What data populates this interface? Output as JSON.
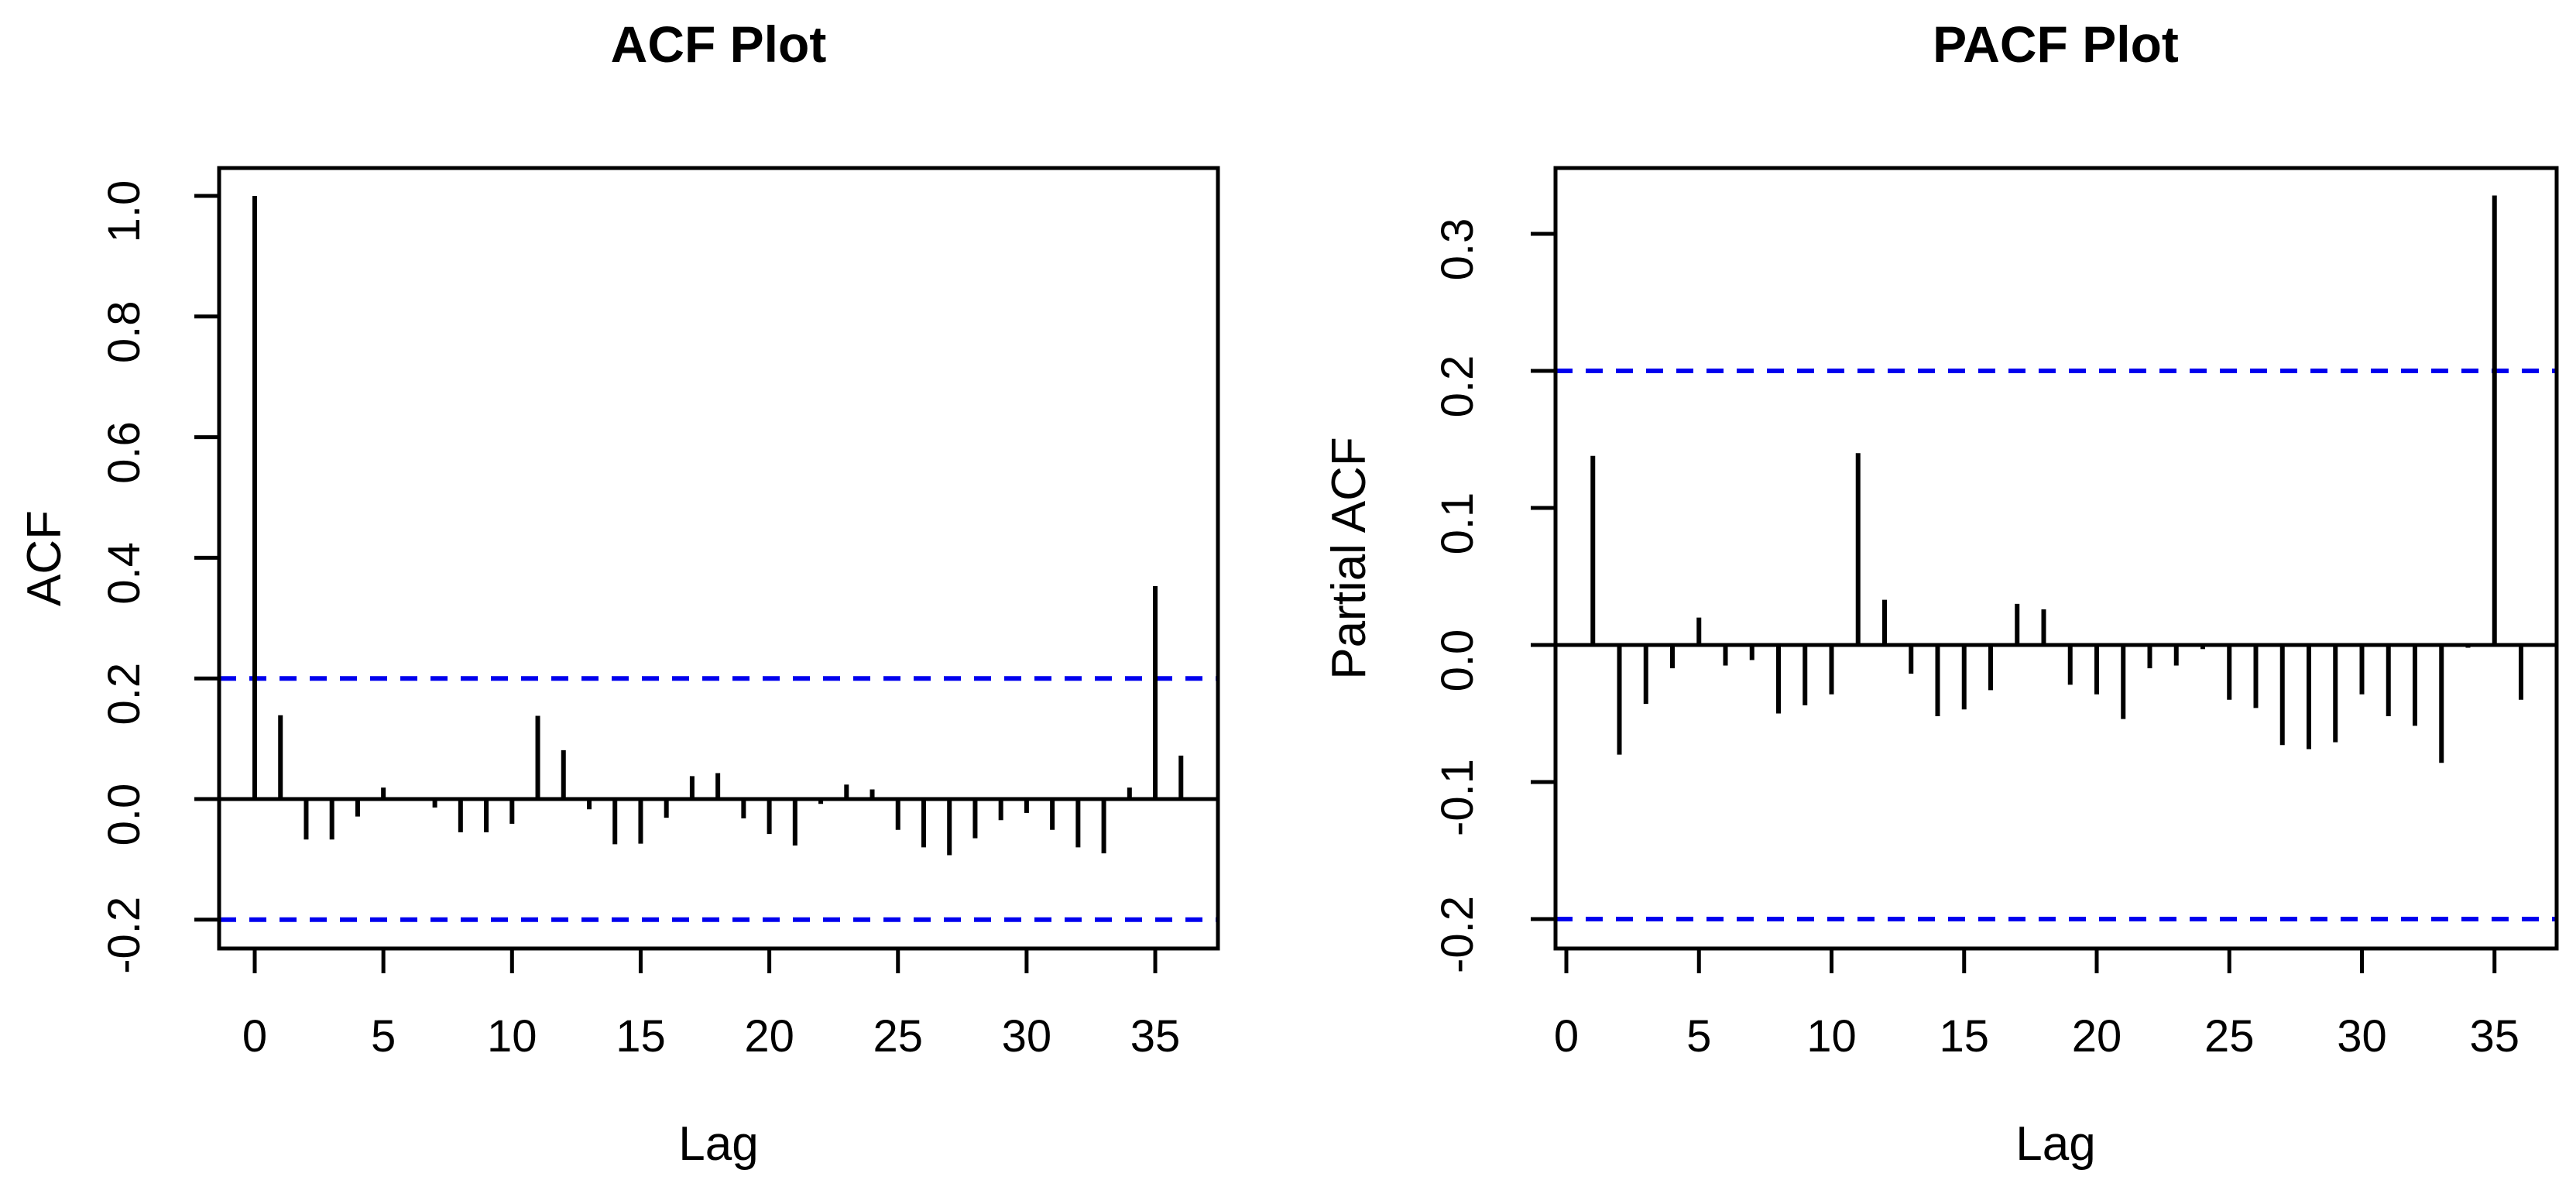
{
  "figure": {
    "background": "#ffffff",
    "line_color": "#000000",
    "ci_color": "#0000ee"
  },
  "chart_data": [
    {
      "type": "bar",
      "title": "ACF Plot",
      "xlabel": "Lag",
      "ylabel": "ACF",
      "x_ticks": [
        0,
        5,
        10,
        15,
        20,
        25,
        30,
        35
      ],
      "x_tick_labels": [
        "0",
        "5",
        "10",
        "15",
        "20",
        "25",
        "30",
        "35"
      ],
      "y_ticks": [
        1.0,
        0.8,
        0.6,
        0.4,
        0.2,
        0.0,
        -0.2
      ],
      "y_tick_labels": [
        "1.0",
        "0.8",
        "0.6",
        "0.4",
        "0.2",
        "0.0",
        "-0.2"
      ],
      "xlim": [
        -1.4,
        37.4
      ],
      "ylim": [
        -0.248,
        1.048
      ],
      "grid": false,
      "conf_bands": [
        0.2,
        -0.2
      ],
      "conf_band_style": "dashed",
      "lags": [
        0,
        1,
        2,
        3,
        4,
        5,
        6,
        7,
        8,
        9,
        10,
        11,
        12,
        13,
        14,
        15,
        16,
        17,
        18,
        19,
        20,
        21,
        22,
        23,
        24,
        25,
        26,
        27,
        28,
        29,
        30,
        31,
        32,
        33,
        34,
        35,
        36
      ],
      "values": [
        1.0,
        0.139,
        -0.067,
        -0.067,
        -0.029,
        0.019,
        0.002,
        -0.014,
        -0.055,
        -0.055,
        -0.041,
        0.138,
        0.081,
        -0.017,
        -0.075,
        -0.074,
        -0.031,
        0.038,
        0.043,
        -0.032,
        -0.058,
        -0.077,
        -0.008,
        0.024,
        0.016,
        -0.051,
        -0.08,
        -0.093,
        -0.065,
        -0.035,
        -0.023,
        -0.051,
        -0.08,
        -0.09,
        0.019,
        0.353,
        0.072
      ]
    },
    {
      "type": "bar",
      "title": "PACF Plot",
      "xlabel": "Lag",
      "ylabel": "Partial ACF",
      "x_ticks": [
        0,
        5,
        10,
        15,
        20,
        25,
        30,
        35
      ],
      "x_tick_labels": [
        "0",
        "5",
        "10",
        "15",
        "20",
        "25",
        "30",
        "35"
      ],
      "y_ticks": [
        0.3,
        0.2,
        0.1,
        0.0,
        -0.1,
        -0.2
      ],
      "y_tick_labels": [
        "0.3",
        "0.2",
        "0.1",
        "0.0",
        "-0.1",
        "-0.2"
      ],
      "xlim": [
        -0.4,
        37.4
      ],
      "ylim": [
        -0.221,
        0.348
      ],
      "grid": false,
      "conf_bands": [
        0.2,
        -0.2
      ],
      "conf_band_style": "dashed",
      "lags": [
        1,
        2,
        3,
        4,
        5,
        6,
        7,
        8,
        9,
        10,
        11,
        12,
        13,
        14,
        15,
        16,
        17,
        18,
        19,
        20,
        21,
        22,
        23,
        24,
        25,
        26,
        27,
        28,
        29,
        30,
        31,
        32,
        33,
        34,
        35,
        36
      ],
      "values": [
        0.138,
        -0.08,
        -0.043,
        -0.017,
        0.02,
        -0.015,
        -0.011,
        -0.05,
        -0.044,
        -0.036,
        0.14,
        0.033,
        -0.021,
        -0.052,
        -0.047,
        -0.033,
        0.03,
        0.026,
        -0.029,
        -0.036,
        -0.054,
        -0.017,
        -0.015,
        -0.003,
        -0.04,
        -0.046,
        -0.073,
        -0.076,
        -0.071,
        -0.036,
        -0.052,
        -0.059,
        -0.086,
        -0.002,
        0.328,
        -0.04
      ]
    }
  ]
}
